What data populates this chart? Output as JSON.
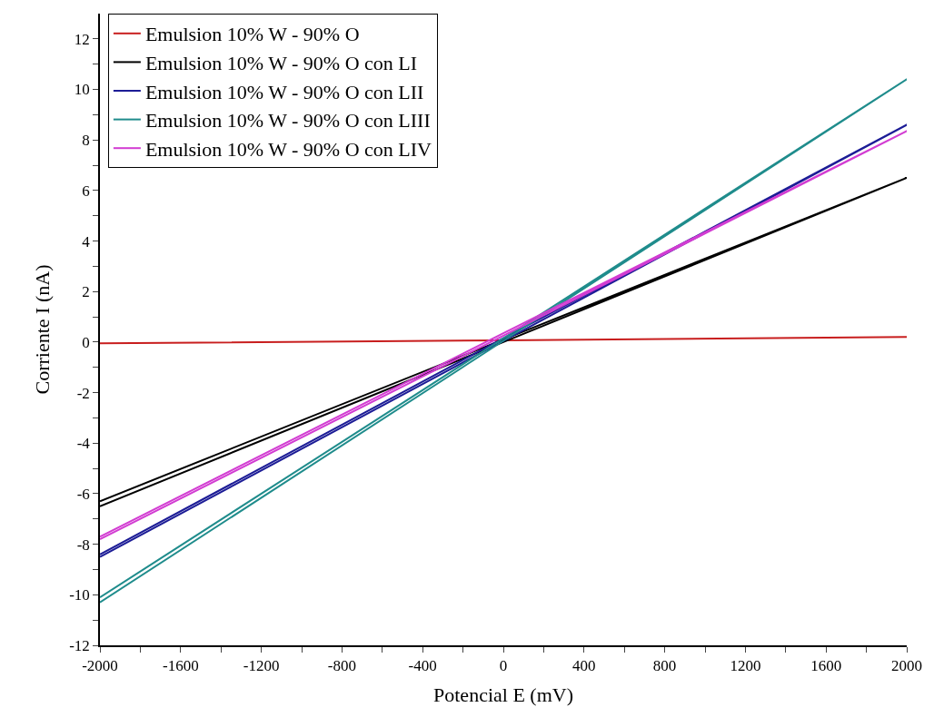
{
  "chart_data": {
    "type": "line",
    "xlabel": "Potencial E (mV)",
    "ylabel": "Corriente I (nA)",
    "series": [
      {
        "name": "Emulsion 10% W - 90% O",
        "color": "#c81e1e",
        "x": [
          -2000,
          0,
          2000
        ],
        "values": [
          -0.05,
          0.07,
          0.2
        ]
      },
      {
        "name": "Emulsion 10% W - 90% O con LI",
        "color": "#000000",
        "x": [
          -2000,
          0,
          2000,
          0,
          -2000
        ],
        "values": [
          -6.5,
          0.0,
          6.5,
          0.1,
          -6.3
        ]
      },
      {
        "name": "Emulsion 10% W - 90% O con LII",
        "color": "#1c1c96",
        "x": [
          -2000,
          0,
          2000,
          0,
          -2000
        ],
        "values": [
          -8.5,
          0.05,
          8.6,
          0.15,
          -8.4
        ]
      },
      {
        "name": "Emulsion 10% W - 90% O con LIII",
        "color": "#1f8c8c",
        "x": [
          -2000,
          0,
          2000,
          0,
          -2000
        ],
        "values": [
          -10.3,
          0.05,
          10.4,
          0.15,
          -10.1
        ]
      },
      {
        "name": "Emulsion 10% W - 90% O con LIV",
        "color": "#d23cd2",
        "x": [
          -2000,
          0,
          2000,
          0,
          -2000
        ],
        "values": [
          -7.8,
          0.25,
          8.35,
          0.35,
          -7.7
        ]
      }
    ],
    "xlim": [
      -2000,
      2000
    ],
    "xticks": [
      -2000,
      {
        "value": -1800,
        "label": null
      },
      -1600,
      {
        "value": -1400,
        "label": null
      },
      -1200,
      {
        "value": -1000,
        "label": null
      },
      -800,
      {
        "value": -600,
        "label": null
      },
      -400,
      {
        "value": -200,
        "label": null
      },
      0,
      {
        "value": 200,
        "label": null
      },
      400,
      {
        "value": 600,
        "label": null
      },
      800,
      {
        "value": 1000,
        "label": null
      },
      1200,
      {
        "value": 1400,
        "label": null
      },
      1600,
      {
        "value": 1800,
        "label": null
      },
      2000
    ],
    "ylim": [
      -12,
      13
    ],
    "yticks": [
      -12,
      {
        "value": -11,
        "label": null
      },
      -10,
      {
        "value": -9,
        "label": null
      },
      -8,
      {
        "value": -7,
        "label": null
      },
      -6,
      {
        "value": -5,
        "label": null
      },
      -4,
      {
        "value": -3,
        "label": null
      },
      -2,
      {
        "value": -1,
        "label": null
      },
      0,
      {
        "value": 1,
        "label": null
      },
      2,
      {
        "value": 3,
        "label": null
      },
      4,
      {
        "value": 5,
        "label": null
      },
      6,
      {
        "value": 7,
        "label": null
      },
      8,
      {
        "value": 9,
        "label": null
      },
      10,
      {
        "value": 11,
        "label": null
      },
      12
    ],
    "legend": "top left",
    "line_style": "solid",
    "marker": "none"
  }
}
